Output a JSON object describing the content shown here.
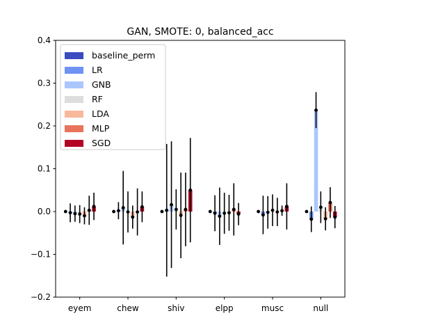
{
  "chart_data": {
    "type": "bar",
    "title": "GAN, SMOTE: 0, balanced_acc",
    "xlabel": "",
    "ylabel": "",
    "ylim": [
      -0.2,
      0.4
    ],
    "yticks": [
      -0.2,
      -0.1,
      0.0,
      0.1,
      0.2,
      0.3,
      0.4
    ],
    "ytick_labels": [
      "−0.2",
      "−0.1",
      "0.0",
      "0.1",
      "0.2",
      "0.3",
      "0.4"
    ],
    "categories": [
      "eyem",
      "chew",
      "shiv",
      "elpp",
      "musc",
      "null"
    ],
    "legend_position": "top-left",
    "series": [
      {
        "name": "baseline_perm",
        "color": "#3b4cc0",
        "values": [
          0.0,
          0.0,
          0.0,
          0.0,
          0.0,
          0.0
        ],
        "errors": [
          0.0,
          0.0,
          0.0,
          0.0,
          0.0,
          0.0
        ]
      },
      {
        "name": "LR",
        "color": "#6f92f3",
        "values": [
          -0.003,
          0.002,
          0.003,
          -0.004,
          -0.008,
          -0.018
        ],
        "errors": [
          0.022,
          0.02,
          0.155,
          0.042,
          0.045,
          0.03
        ]
      },
      {
        "name": "GNB",
        "color": "#aac7fd",
        "values": [
          -0.005,
          0.009,
          0.016,
          -0.011,
          -0.002,
          0.237
        ],
        "errors": [
          0.019,
          0.086,
          0.148,
          0.067,
          0.038,
          0.042
        ]
      },
      {
        "name": "RF",
        "color": "#dddddd",
        "values": [
          -0.006,
          -0.001,
          0.005,
          -0.004,
          0.003,
          0.01
        ],
        "errors": [
          0.021,
          0.048,
          0.047,
          0.048,
          0.037,
          0.037
        ]
      },
      {
        "name": "LDA",
        "color": "#f7b89c",
        "values": [
          -0.01,
          -0.013,
          -0.009,
          -0.003,
          -0.001,
          -0.017
        ],
        "errors": [
          0.02,
          0.027,
          0.1,
          0.042,
          0.033,
          0.027
        ]
      },
      {
        "name": "MLP",
        "color": "#e7745b",
        "values": [
          0.003,
          -0.001,
          0.005,
          0.005,
          0.002,
          0.021
        ],
        "errors": [
          0.034,
          0.055,
          0.086,
          0.061,
          0.012,
          0.036
        ]
      },
      {
        "name": "SGD",
        "color": "#b40426",
        "values": [
          0.012,
          0.011,
          0.05,
          -0.006,
          0.012,
          -0.013
        ],
        "errors": [
          0.032,
          0.036,
          0.122,
          0.026,
          0.054,
          0.026
        ]
      }
    ]
  }
}
